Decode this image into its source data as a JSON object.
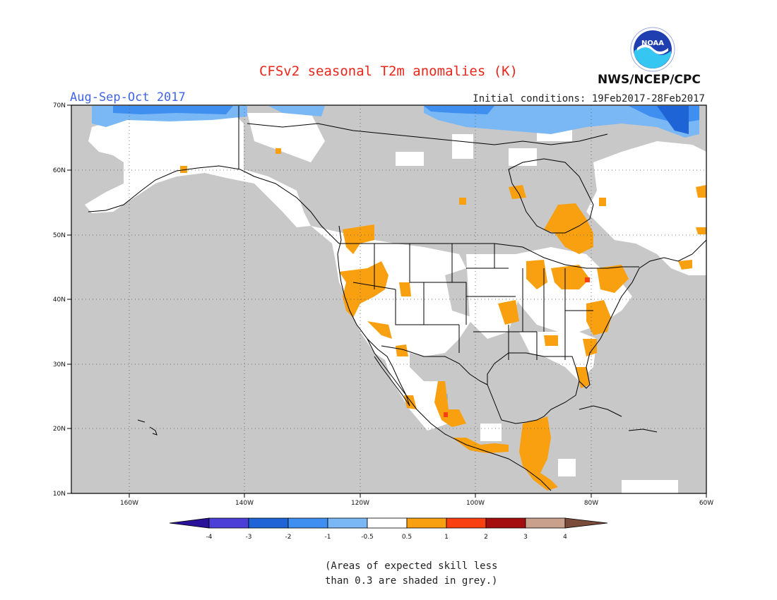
{
  "title": "CFSv2 seasonal T2m anomalies (K)",
  "season": "Aug-Sep-Oct 2017",
  "initial_conditions": "Initial conditions: 19Feb2017-28Feb2017",
  "agency": "NWS/NCEP/CPC",
  "logo_text": "NOAA",
  "footnote": [
    "(Areas of expected skill less",
    "than 0.3 are shaded in grey.)"
  ],
  "map": {
    "projection": "lat-lon",
    "lon_range": [
      -170,
      -60
    ],
    "lat_range": [
      10,
      70
    ],
    "lon_ticks": [
      {
        "value": -160,
        "label": "160W"
      },
      {
        "value": -140,
        "label": "140W"
      },
      {
        "value": -120,
        "label": "120W"
      },
      {
        "value": -100,
        "label": "100W"
      },
      {
        "value": -80,
        "label": "80W"
      },
      {
        "value": -60,
        "label": "60W"
      }
    ],
    "lat_ticks": [
      {
        "value": 70,
        "label": "70N"
      },
      {
        "value": 60,
        "label": "60N"
      },
      {
        "value": 50,
        "label": "50N"
      },
      {
        "value": 40,
        "label": "40N"
      },
      {
        "value": 30,
        "label": "30N"
      },
      {
        "value": 20,
        "label": "20N"
      },
      {
        "value": 10,
        "label": "10N"
      }
    ],
    "grid": "dotted"
  },
  "colorbar": {
    "bins": [
      {
        "color": "#2a1199"
      },
      {
        "color": "#4b3fd8"
      },
      {
        "color": "#1e64d6"
      },
      {
        "color": "#3f8ff0"
      },
      {
        "color": "#7ab8f5"
      },
      {
        "color": "#ffffff"
      },
      {
        "color": "#f8a010"
      },
      {
        "color": "#f84010"
      },
      {
        "color": "#a50e0e"
      },
      {
        "color": "#c9a08c"
      },
      {
        "color": "#7a4a3a"
      }
    ],
    "labels": [
      "-4",
      "-3",
      "-2",
      "-1",
      "-0.5",
      "0.5",
      "1",
      "2",
      "3",
      "4"
    ]
  },
  "colors": {
    "grey_no_skill": "#c8c8c8",
    "neutral": "#ffffff",
    "warm_05_1": "#f8a010",
    "warm_1_2": "#f84010",
    "cool_-05_-1": "#7ab8f5",
    "cool_-1_-2": "#3f8ff0",
    "cool_-2_-3": "#1e64d6"
  }
}
